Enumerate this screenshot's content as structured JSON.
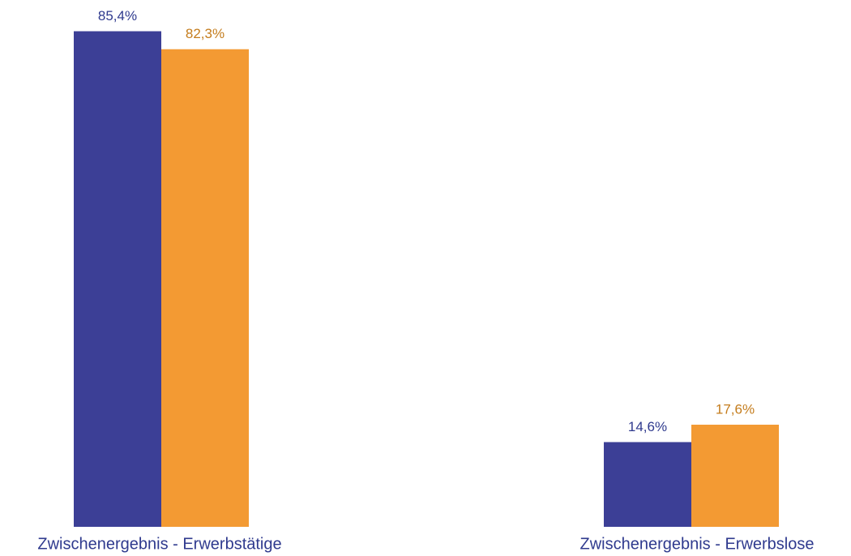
{
  "chart_data": {
    "type": "bar",
    "categories": [
      "Zwischenergebnis - Erwerbstätige",
      "Zwischenergebnis - Erwerbslose"
    ],
    "series": [
      {
        "color": "#3c3f96",
        "label_color": "#2f3a8e",
        "values": [
          85.4,
          14.6
        ],
        "value_labels": [
          "85,4%",
          "14,6%"
        ]
      },
      {
        "color": "#f39a33",
        "label_color": "#c47c1c",
        "values": [
          82.3,
          17.6
        ],
        "value_labels": [
          "82,3%",
          "17,6%"
        ]
      }
    ]
  }
}
